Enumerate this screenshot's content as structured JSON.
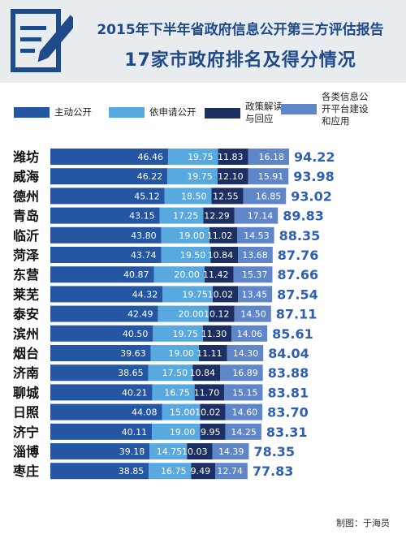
{
  "header": {
    "title_line1": "2015年下半年省政府信息公开第三方评估报告",
    "title_line2": "17家市政府排名及得分情况"
  },
  "colors": {
    "series": [
      "#2456a4",
      "#58a9df",
      "#1b2f63",
      "#5f86c9"
    ],
    "total": "#2e5fb1",
    "city": "#111111"
  },
  "chart_data": {
    "type": "bar",
    "orientation": "horizontal",
    "stacked": true,
    "categories": [
      "潍坊",
      "威海",
      "德州",
      "青岛",
      "临沂",
      "菏泽",
      "东营",
      "莱芜",
      "泰安",
      "滨州",
      "烟台",
      "济南",
      "聊城",
      "日照",
      "济宁",
      "淄博",
      "枣庄"
    ],
    "series": [
      {
        "name": "主动公开",
        "values": [
          46.46,
          46.22,
          45.12,
          43.15,
          43.8,
          43.74,
          40.87,
          44.32,
          42.49,
          40.5,
          39.63,
          38.65,
          40.21,
          44.08,
          40.11,
          39.18,
          38.85
        ]
      },
      {
        "name": "依申请公开",
        "values": [
          19.75,
          19.75,
          18.5,
          17.25,
          19.0,
          19.5,
          20.0,
          19.75,
          20.0,
          19.75,
          19.0,
          17.5,
          16.75,
          15.0,
          19.0,
          14.75,
          16.75
        ]
      },
      {
        "name": "政策解读\n与回应",
        "values": [
          11.83,
          12.1,
          12.55,
          12.29,
          11.02,
          10.84,
          11.42,
          10.02,
          10.12,
          11.3,
          11.11,
          10.84,
          11.7,
          10.02,
          9.95,
          10.03,
          9.49
        ]
      },
      {
        "name": "各类信息公\n开平台建设\n和应用",
        "values": [
          16.18,
          15.91,
          16.85,
          17.14,
          14.53,
          13.68,
          15.37,
          13.45,
          14.5,
          14.06,
          14.3,
          16.89,
          15.15,
          14.6,
          14.25,
          14.39,
          12.74
        ]
      }
    ],
    "totals": [
      94.22,
      93.98,
      93.02,
      89.83,
      88.35,
      87.76,
      87.66,
      87.54,
      87.11,
      85.61,
      84.04,
      83.88,
      83.81,
      83.7,
      83.31,
      78.35,
      77.83
    ],
    "value_format": "0.00",
    "legend_position": "top",
    "grid": false
  },
  "footer": {
    "credit": "制图：于海员"
  }
}
